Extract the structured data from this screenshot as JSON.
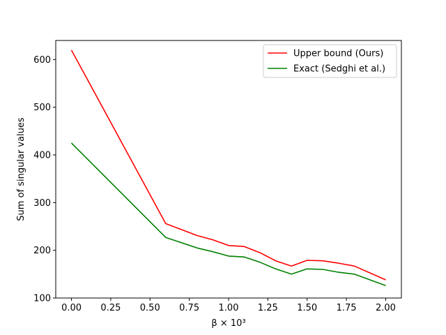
{
  "chart_data": {
    "type": "line",
    "xlabel": "β × 10³",
    "ylabel": "Sum of singular values",
    "xlim": [
      -0.1,
      2.1
    ],
    "ylim": [
      100,
      640
    ],
    "xticks": [
      0.0,
      0.25,
      0.5,
      0.75,
      1.0,
      1.25,
      1.5,
      1.75,
      2.0
    ],
    "xtick_labels": [
      "0.00",
      "0.25",
      "0.50",
      "0.75",
      "1.00",
      "1.25",
      "1.50",
      "1.75",
      "2.00"
    ],
    "yticks": [
      100,
      200,
      300,
      400,
      500,
      600
    ],
    "ytick_labels": [
      "100",
      "200",
      "300",
      "400",
      "500",
      "600"
    ],
    "grid": false,
    "legend_position": "top-right",
    "series": [
      {
        "name": "Upper bound (Ours)",
        "color": "#ff0000",
        "x": [
          0.0,
          0.6,
          0.8,
          0.9,
          1.0,
          1.1,
          1.2,
          1.3,
          1.4,
          1.5,
          1.6,
          1.7,
          1.8,
          2.0
        ],
        "y": [
          620,
          256,
          231,
          222,
          210,
          208,
          195,
          178,
          167,
          179,
          178,
          173,
          167,
          138
        ]
      },
      {
        "name": "Exact (Sedghi et al.)",
        "color": "#008000",
        "x": [
          0.0,
          0.6,
          0.8,
          0.9,
          1.0,
          1.1,
          1.2,
          1.3,
          1.4,
          1.5,
          1.6,
          1.7,
          1.8,
          2.0
        ],
        "y": [
          425,
          227,
          205,
          197,
          188,
          186,
          175,
          161,
          150,
          161,
          160,
          154,
          150,
          126
        ]
      }
    ]
  }
}
